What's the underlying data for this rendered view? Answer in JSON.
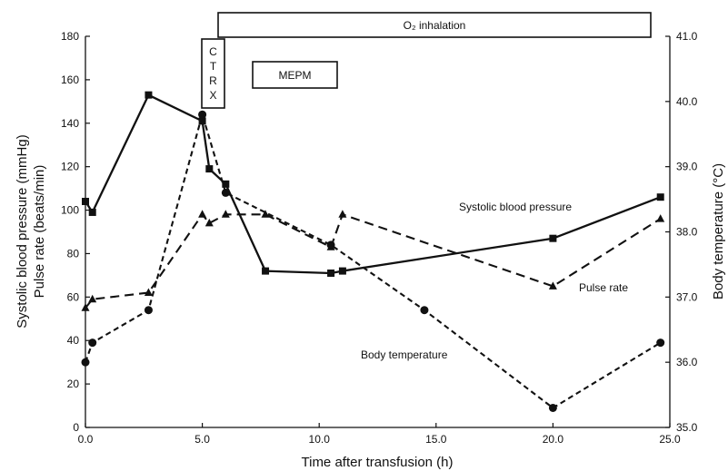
{
  "chart_data": {
    "type": "line",
    "title": "",
    "xlabel": "Time after transfusion (h)",
    "ylabel": [
      "Systolic blood pressure (mmHg)",
      "Pulse rate (beats/min)"
    ],
    "y2label": "Body temperature (°C)",
    "xlim": [
      0.0,
      25.0
    ],
    "ylim": [
      0,
      180
    ],
    "y2lim": [
      35.0,
      41.0
    ],
    "x_ticks": [
      "0.0",
      "5.0",
      "10.0",
      "15.0",
      "20.0",
      "25.0"
    ],
    "y_ticks": [
      "0",
      "20",
      "40",
      "60",
      "80",
      "100",
      "120",
      "140",
      "160",
      "180"
    ],
    "y2_ticks": [
      "35.0",
      "36.0",
      "37.0",
      "38.0",
      "39.0",
      "40.0",
      "41.0"
    ],
    "grid": false,
    "legend": "none",
    "series": [
      {
        "name": "Systolic blood pressure",
        "axis": "left",
        "marker": "square",
        "line": "solid",
        "points": [
          [
            0.0,
            104
          ],
          [
            0.3,
            99
          ],
          [
            2.7,
            153
          ],
          [
            5.0,
            141
          ],
          [
            5.3,
            119
          ],
          [
            6.0,
            112
          ],
          [
            7.7,
            72
          ],
          [
            10.5,
            71
          ],
          [
            11.0,
            72
          ],
          [
            20.0,
            87
          ],
          [
            24.6,
            106
          ]
        ]
      },
      {
        "name": "Pulse rate",
        "axis": "left",
        "marker": "triangle",
        "line": "dashed",
        "points": [
          [
            0.0,
            55
          ],
          [
            0.3,
            59
          ],
          [
            2.7,
            62
          ],
          [
            5.0,
            98
          ],
          [
            5.3,
            94
          ],
          [
            6.0,
            98
          ],
          [
            7.7,
            98
          ],
          [
            10.5,
            83
          ],
          [
            11.0,
            98
          ],
          [
            20.0,
            65
          ],
          [
            24.6,
            96
          ]
        ]
      },
      {
        "name": "Body temperature",
        "axis": "right",
        "marker": "circle",
        "line": "dotted",
        "points": [
          [
            0.0,
            36.0
          ],
          [
            0.3,
            36.3
          ],
          [
            2.7,
            36.8
          ],
          [
            5.0,
            39.8
          ],
          [
            6.0,
            38.6
          ],
          [
            10.5,
            37.8
          ],
          [
            14.5,
            36.8
          ],
          [
            20.0,
            35.3
          ],
          [
            24.6,
            36.3
          ]
        ]
      }
    ],
    "annotations": {
      "o2": "O₂  inhalation",
      "ctrx": [
        "C",
        "T",
        "R",
        "X"
      ],
      "mepm": "MEPM"
    },
    "line_color": "#111111"
  }
}
